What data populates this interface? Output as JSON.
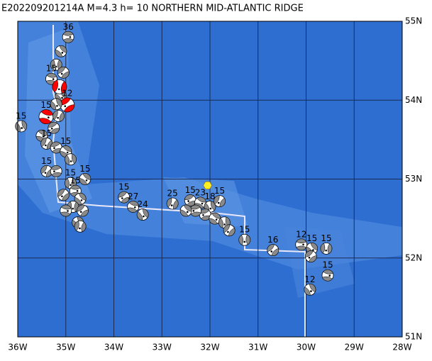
{
  "header": {
    "title": "E202209201214A  M=4.3  h= 10  NORTHERN MID-ATLANTIC RIDGE"
  },
  "map": {
    "lonlim": [
      -36,
      -28
    ],
    "latlim": [
      51,
      55
    ],
    "lonticks": [
      {
        "value": -36,
        "label": "36W"
      },
      {
        "value": -35,
        "label": "35W"
      },
      {
        "value": -34,
        "label": "34W"
      },
      {
        "value": -33,
        "label": "33W"
      },
      {
        "value": -32,
        "label": "32W"
      },
      {
        "value": -31,
        "label": "31W"
      },
      {
        "value": -30,
        "label": "30W"
      },
      {
        "value": -29,
        "label": "29W"
      },
      {
        "value": -28,
        "label": "28W"
      }
    ],
    "latticks": [
      {
        "value": 55,
        "label": "55N"
      },
      {
        "value": 54,
        "label": "54N"
      },
      {
        "value": 53,
        "label": "53N"
      },
      {
        "value": 52,
        "label": "52N"
      },
      {
        "value": 51,
        "label": "51N"
      }
    ],
    "epicenter": {
      "lon": -32.05,
      "lat": 52.92,
      "color": "#ffee22"
    },
    "events": [
      {
        "lon": -34.95,
        "lat": 54.8,
        "depth": "36"
      },
      {
        "lon": -35.1,
        "lat": 54.62
      },
      {
        "lon": -35.2,
        "lat": 54.45
      },
      {
        "lon": -35.05,
        "lat": 54.35
      },
      {
        "lon": -35.3,
        "lat": 54.27,
        "depth": "15"
      },
      {
        "lon": -35.1,
        "lat": 54.05
      },
      {
        "lon": -35.13,
        "lat": 54.17,
        "color": "red"
      },
      {
        "lon": -34.97,
        "lat": 53.94,
        "depth": "12",
        "color": "red"
      },
      {
        "lon": -35.41,
        "lat": 53.79,
        "depth": "15",
        "color": "red"
      },
      {
        "lon": -35.2,
        "lat": 53.95
      },
      {
        "lon": -35.15,
        "lat": 53.8
      },
      {
        "lon": -35.25,
        "lat": 53.65
      },
      {
        "lon": -35.5,
        "lat": 53.55
      },
      {
        "lon": -35.93,
        "lat": 53.67,
        "depth": "15"
      },
      {
        "lon": -35.4,
        "lat": 53.45,
        "depth": "15"
      },
      {
        "lon": -35.2,
        "lat": 53.4
      },
      {
        "lon": -35.0,
        "lat": 53.35,
        "depth": "15"
      },
      {
        "lon": -34.9,
        "lat": 53.25
      },
      {
        "lon": -35.4,
        "lat": 53.1,
        "depth": "15"
      },
      {
        "lon": -35.2,
        "lat": 53.1
      },
      {
        "lon": -34.6,
        "lat": 53.0,
        "depth": "15"
      },
      {
        "lon": -34.9,
        "lat": 52.95,
        "depth": "15"
      },
      {
        "lon": -35.05,
        "lat": 52.8
      },
      {
        "lon": -34.8,
        "lat": 52.85,
        "depth": "15"
      },
      {
        "lon": -34.7,
        "lat": 52.75
      },
      {
        "lon": -34.85,
        "lat": 52.65
      },
      {
        "lon": -34.65,
        "lat": 52.6
      },
      {
        "lon": -35.0,
        "lat": 52.6
      },
      {
        "lon": -34.75,
        "lat": 52.45
      },
      {
        "lon": -34.7,
        "lat": 52.4
      },
      {
        "lon": -33.79,
        "lat": 52.77,
        "depth": "15"
      },
      {
        "lon": -33.6,
        "lat": 52.65,
        "depth": "27"
      },
      {
        "lon": -33.4,
        "lat": 52.55,
        "depth": "24"
      },
      {
        "lon": -32.78,
        "lat": 52.69,
        "depth": "25"
      },
      {
        "lon": -32.41,
        "lat": 52.73,
        "depth": "15"
      },
      {
        "lon": -32.2,
        "lat": 52.7,
        "depth": "23"
      },
      {
        "lon": -32.0,
        "lat": 52.65,
        "depth": "18"
      },
      {
        "lon": -31.8,
        "lat": 52.72,
        "depth": "15"
      },
      {
        "lon": -32.1,
        "lat": 52.55
      },
      {
        "lon": -31.9,
        "lat": 52.5
      },
      {
        "lon": -31.7,
        "lat": 52.45
      },
      {
        "lon": -31.6,
        "lat": 52.35
      },
      {
        "lon": -32.3,
        "lat": 52.6
      },
      {
        "lon": -32.5,
        "lat": 52.6
      },
      {
        "lon": -31.28,
        "lat": 52.23,
        "depth": "15"
      },
      {
        "lon": -30.69,
        "lat": 52.1,
        "depth": "16"
      },
      {
        "lon": -30.1,
        "lat": 52.17,
        "depth": "12"
      },
      {
        "lon": -29.88,
        "lat": 52.12,
        "depth": "15"
      },
      {
        "lon": -29.58,
        "lat": 52.12,
        "depth": "15"
      },
      {
        "lon": -29.9,
        "lat": 52.02
      },
      {
        "lon": -29.55,
        "lat": 51.78,
        "depth": "15"
      },
      {
        "lon": -29.92,
        "lat": 51.6,
        "depth": "12"
      }
    ]
  }
}
